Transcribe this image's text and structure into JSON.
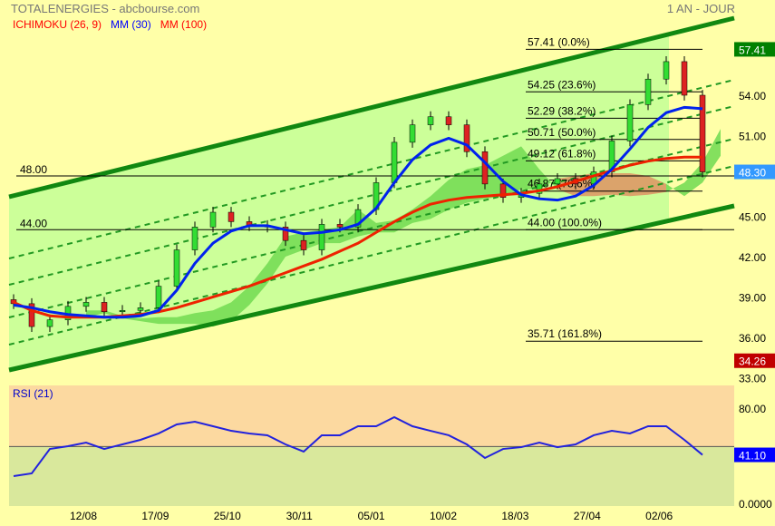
{
  "header": {
    "title": "TOTALENERGIES - abcbourse.com",
    "period": "1 AN - JOUR"
  },
  "legend": [
    {
      "label": "ICHIMOKU (26, 9)",
      "color": "#ff0000"
    },
    {
      "label": "MM (30)",
      "color": "#0000ff"
    },
    {
      "label": "MM (100)",
      "color": "#ff0000"
    }
  ],
  "chart_data": [
    {
      "type": "candlestick",
      "title": "TOTALENERGIES",
      "ylim": [
        33,
        58
      ],
      "yticks": [
        "54.00",
        "51.00",
        "45.00",
        "42.00",
        "39.00",
        "36.00",
        "33.00"
      ],
      "price_badges": [
        {
          "label": "57.41",
          "value": 57.41,
          "color": "#008000"
        },
        {
          "label": "48.30",
          "value": 48.3,
          "color": "#3399ff"
        },
        {
          "label": "34.26",
          "value": 34.26,
          "color": "#c00000"
        }
      ],
      "xticks": [
        "12/08",
        "17/09",
        "25/10",
        "30/11",
        "05/01",
        "10/02",
        "18/03",
        "27/04",
        "02/06"
      ],
      "closes": [
        38.5,
        36.8,
        37.3,
        38.3,
        38.6,
        37.9,
        38.0,
        38.2,
        39.8,
        42.5,
        44.2,
        45.3,
        44.6,
        44.3,
        44.2,
        43.2,
        42.5,
        44.4,
        44.2,
        45.5,
        47.5,
        50.5,
        51.8,
        52.4,
        51.8,
        49.8,
        47.4,
        46.4,
        46.7,
        47.4,
        47.8,
        47.4,
        48.3,
        50.6,
        53.3,
        55.2,
        56.5,
        54.0,
        48.3
      ],
      "mm30": [
        38.4,
        38.2,
        37.9,
        37.7,
        37.6,
        37.5,
        37.5,
        37.6,
        38.0,
        39.5,
        41.5,
        43.0,
        43.9,
        44.3,
        44.3,
        44.0,
        43.7,
        43.8,
        44.0,
        44.4,
        45.6,
        47.5,
        49.2,
        50.3,
        50.8,
        50.3,
        49.0,
        47.6,
        46.6,
        46.3,
        46.2,
        46.5,
        47.3,
        48.5,
        50.0,
        51.6,
        52.7,
        53.1,
        53.0
      ],
      "mm100": [
        38.6,
        38.0,
        37.6,
        37.5,
        37.5,
        37.5,
        37.6,
        37.7,
        37.9,
        38.2,
        38.6,
        39.0,
        39.4,
        39.8,
        40.3,
        40.8,
        41.3,
        41.8,
        42.4,
        43.0,
        43.8,
        44.6,
        45.3,
        45.9,
        46.2,
        46.4,
        46.5,
        46.6,
        46.7,
        46.9,
        47.2,
        47.6,
        48.0,
        48.4,
        48.8,
        49.1,
        49.3,
        49.4,
        49.4
      ],
      "ichimoku_span_a": [
        null,
        null,
        null,
        null,
        38,
        38,
        37.6,
        37.4,
        37.5,
        37.5,
        37.8,
        38,
        38.6,
        39.8,
        41.5,
        43.5,
        43.8,
        44,
        44.2,
        45.5,
        44.5,
        44.7,
        45.5,
        46.5,
        47.7,
        48.5,
        48.8,
        49.5,
        50.2,
        48.5,
        47,
        46.5,
        46.5,
        46.6,
        46.5,
        46.6,
        46.8,
        47.5,
        49,
        51.5
      ],
      "ichimoku_span_b": [
        null,
        null,
        null,
        null,
        37.5,
        37.8,
        37.4,
        37.2,
        37,
        37,
        37,
        36.8,
        37.2,
        38.4,
        40,
        42,
        42.5,
        43,
        43,
        43.5,
        43.8,
        43.8,
        44.5,
        44.8,
        45.5,
        46,
        46.3,
        46.5,
        47,
        47,
        47.8,
        48,
        48.2,
        48.2,
        48.2,
        48,
        47.4,
        46.5,
        47.5,
        49.5
      ],
      "fibonacci": [
        {
          "label": "57.41  (0.0%)",
          "value": 57.41
        },
        {
          "label": "54.25  (23.6%)",
          "value": 54.25
        },
        {
          "label": "52.29  (38.2%)",
          "value": 52.29
        },
        {
          "label": "50.71  (50.0%)",
          "value": 50.71
        },
        {
          "label": "49.12  (61.8%)",
          "value": 49.12
        },
        {
          "label": "46.87  (78.6%)",
          "value": 46.87
        },
        {
          "label": "44.00  (100.0%)",
          "value": 44.0
        },
        {
          "label": "35.71  (161.8%)",
          "value": 35.71
        }
      ],
      "horizontal_lines": [
        {
          "label": "48.00",
          "value": 48.0
        },
        {
          "label": "44.00",
          "value": 44.0
        }
      ]
    },
    {
      "type": "line",
      "title": "RSI (21)",
      "ylim": [
        0,
        100
      ],
      "yticks": [
        "80.00",
        "0.0000"
      ],
      "threshold": 48,
      "last_badge": {
        "label": "41.10",
        "color": "#0000ff"
      },
      "values": [
        23.4,
        25.7,
        46,
        48.3,
        51.3,
        46,
        49.8,
        53.6,
        58.9,
        66.4,
        68.7,
        64.9,
        61.1,
        58.9,
        57.4,
        49.8,
        43.8,
        57.4,
        57.4,
        64.9,
        64.9,
        72.5,
        64.9,
        61.1,
        57.4,
        49.8,
        38.5,
        46,
        47.5,
        51.3,
        47.5,
        49.8,
        57.4,
        61.1,
        58.9,
        64.9,
        64.9,
        53.6,
        41.1
      ]
    }
  ]
}
